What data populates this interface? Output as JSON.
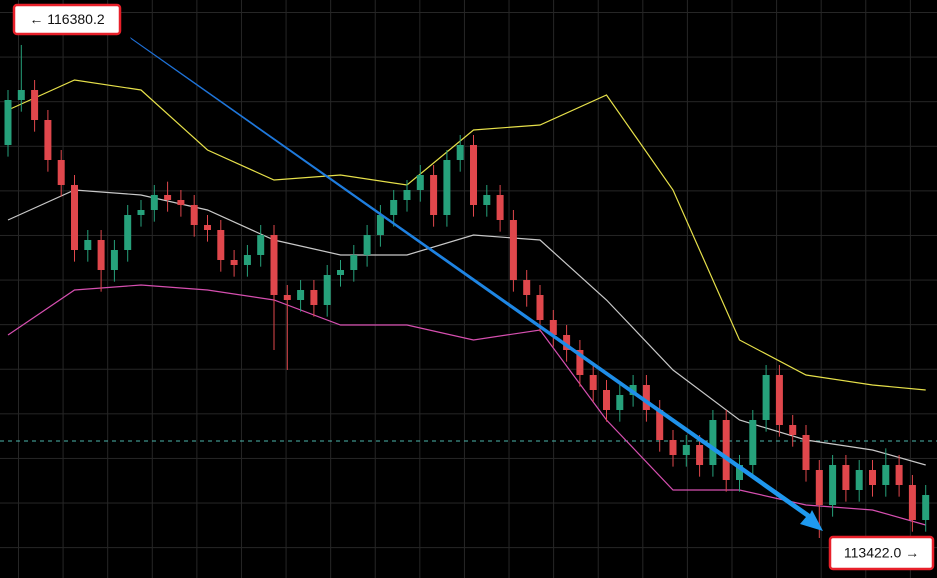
{
  "chart_data": {
    "type": "candlestick",
    "ylim": [
      113182,
      116650
    ],
    "grid": true,
    "up_color": "#26a17b",
    "down_color": "#e0474c",
    "open": [
      115780,
      116050,
      116110,
      115930,
      115690,
      115540,
      115150,
      115210,
      115030,
      115150,
      115360,
      115390,
      115480,
      115450,
      115420,
      115300,
      115270,
      115090,
      115060,
      115120,
      115240,
      114880,
      114850,
      114910,
      114820,
      115000,
      115030,
      115120,
      115240,
      115360,
      115450,
      115510,
      115600,
      115360,
      115690,
      115780,
      115420,
      115480,
      115330,
      114970,
      114880,
      114730,
      114640,
      114550,
      114400,
      114310,
      114190,
      114280,
      114340,
      114190,
      114010,
      113920,
      113980,
      113860,
      114130,
      113770,
      113860,
      114130,
      114400,
      114100,
      114040,
      113830,
      113620,
      113860,
      113710,
      113830,
      113740,
      113860,
      113740,
      113530
    ],
    "high": [
      116110,
      116380.2,
      116170,
      115990,
      115750,
      115600,
      115270,
      115270,
      115210,
      115420,
      115450,
      115540,
      115560,
      115510,
      115480,
      115360,
      115330,
      115150,
      115180,
      115300,
      115300,
      114940,
      114970,
      114970,
      115060,
      115090,
      115180,
      115300,
      115420,
      115510,
      115570,
      115660,
      115660,
      115750,
      115840,
      115840,
      115540,
      115540,
      115390,
      115030,
      114940,
      114790,
      114700,
      114610,
      114460,
      114370,
      114340,
      114400,
      114400,
      114250,
      114070,
      114040,
      114040,
      114190,
      114190,
      113920,
      114190,
      114460,
      114460,
      114160,
      114100,
      113890,
      113920,
      113920,
      113890,
      113890,
      113960,
      113920,
      113800,
      113740
    ],
    "low": [
      115710,
      115980,
      115860,
      115620,
      115470,
      115080,
      115080,
      114900,
      114960,
      115080,
      115290,
      115320,
      115380,
      115350,
      115230,
      115200,
      115020,
      114990,
      114990,
      115050,
      114550,
      114430,
      114780,
      114750,
      114750,
      114930,
      114960,
      115050,
      115170,
      115290,
      115380,
      115440,
      115290,
      115290,
      115620,
      115350,
      115350,
      115260,
      114900,
      114810,
      114660,
      114570,
      114480,
      114330,
      114240,
      114120,
      114120,
      114210,
      114120,
      113940,
      113850,
      113850,
      113790,
      113790,
      113700,
      113700,
      113790,
      114060,
      114030,
      113970,
      113760,
      113422.0,
      113550,
      113640,
      113640,
      113670,
      113670,
      113670,
      113460,
      113460
    ],
    "close": [
      116050,
      116110,
      115930,
      115690,
      115540,
      115150,
      115210,
      115030,
      115150,
      115360,
      115390,
      115480,
      115450,
      115420,
      115300,
      115270,
      115090,
      115060,
      115120,
      115240,
      114880,
      114850,
      114910,
      114820,
      115000,
      115030,
      115120,
      115240,
      115360,
      115450,
      115510,
      115600,
      115360,
      115690,
      115780,
      115420,
      115480,
      115330,
      114970,
      114880,
      114730,
      114640,
      114550,
      114400,
      114310,
      114190,
      114280,
      114340,
      114190,
      114010,
      113920,
      113980,
      113860,
      114130,
      113770,
      113860,
      114130,
      114400,
      114100,
      114040,
      113830,
      113620,
      113860,
      113710,
      113830,
      113740,
      113860,
      113740,
      113530,
      113680
    ],
    "bands": {
      "x": [
        0,
        5,
        10,
        15,
        20,
        25,
        30,
        35,
        40,
        45,
        50,
        55,
        60,
        65,
        69
      ],
      "series": [
        {
          "color": "#e6e04a",
          "values": [
            115990,
            116170,
            116110,
            115750,
            115570,
            115600,
            115540,
            115870,
            115900,
            116080,
            115510,
            114610,
            114400,
            114340,
            114310
          ]
        },
        {
          "color": "#c8c8c8",
          "values": [
            115330,
            115510,
            115480,
            115390,
            115210,
            115120,
            115120,
            115240,
            115210,
            114850,
            114430,
            114130,
            114010,
            113950,
            113860
          ]
        },
        {
          "color": "#d64fb0",
          "values": [
            114640,
            114910,
            114940,
            114910,
            114850,
            114700,
            114700,
            114610,
            114670,
            114130,
            113710,
            113710,
            113620,
            113590,
            113500
          ]
        }
      ]
    },
    "reference_line": {
      "value": 114004,
      "color": "#4db6ac"
    },
    "annotations": [
      {
        "text": "← 116380.2"
      },
      {
        "text": "113422.0 →"
      }
    ]
  }
}
